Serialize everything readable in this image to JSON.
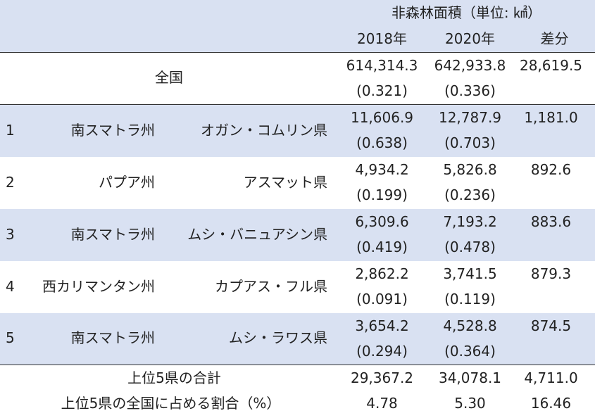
{
  "header": {
    "group_label": "非森林面積（単位: ㎢）",
    "col_2018": "2018年",
    "col_2020": "2020年",
    "col_diff": "差分"
  },
  "national": {
    "label": "全国",
    "v2018": "614,314.3",
    "v2020": "642,933.8",
    "diff": "28,619.5",
    "r2018": "(0.321)",
    "r2020": "(0.336)"
  },
  "rows": [
    {
      "rank": "1",
      "province": "南スマトラ州",
      "regency": "オガン・コムリン県",
      "v2018": "11,606.9",
      "v2020": "12,787.9",
      "diff": "1,181.0",
      "r2018": "(0.638)",
      "r2020": "(0.703)"
    },
    {
      "rank": "2",
      "province": "パプア州",
      "regency": "アスマット県",
      "v2018": "4,934.2",
      "v2020": "5,826.8",
      "diff": "892.6",
      "r2018": "(0.199)",
      "r2020": "(0.236)"
    },
    {
      "rank": "3",
      "province": "南スマトラ州",
      "regency": "ムシ・バニュアシン県",
      "v2018": "6,309.6",
      "v2020": "7,193.2",
      "diff": "883.6",
      "r2018": "(0.419)",
      "r2020": "(0.478)"
    },
    {
      "rank": "4",
      "province": "西カリマンタン州",
      "regency": "カプアス・フル県",
      "v2018": "2,862.2",
      "v2020": "3,741.5",
      "diff": "879.3",
      "r2018": "(0.091)",
      "r2020": "(0.119)"
    },
    {
      "rank": "5",
      "province": "南スマトラ州",
      "regency": "ムシ・ラワス県",
      "v2018": "3,654.2",
      "v2020": "4,528.8",
      "diff": "874.5",
      "r2018": "(0.294)",
      "r2020": "(0.364)"
    }
  ],
  "total": {
    "label": "上位5県の合計",
    "v2018": "29,367.2",
    "v2020": "34,078.1",
    "diff": "4,711.0"
  },
  "share": {
    "label": "上位5県の全国に占める割合（%）",
    "v2018": "4.78",
    "v2020": "5.30",
    "diff": "16.46"
  },
  "colors": {
    "band_blue": "#d9e1f2",
    "band_white": "#ffffff",
    "rule": "#333333",
    "text": "#222222"
  }
}
